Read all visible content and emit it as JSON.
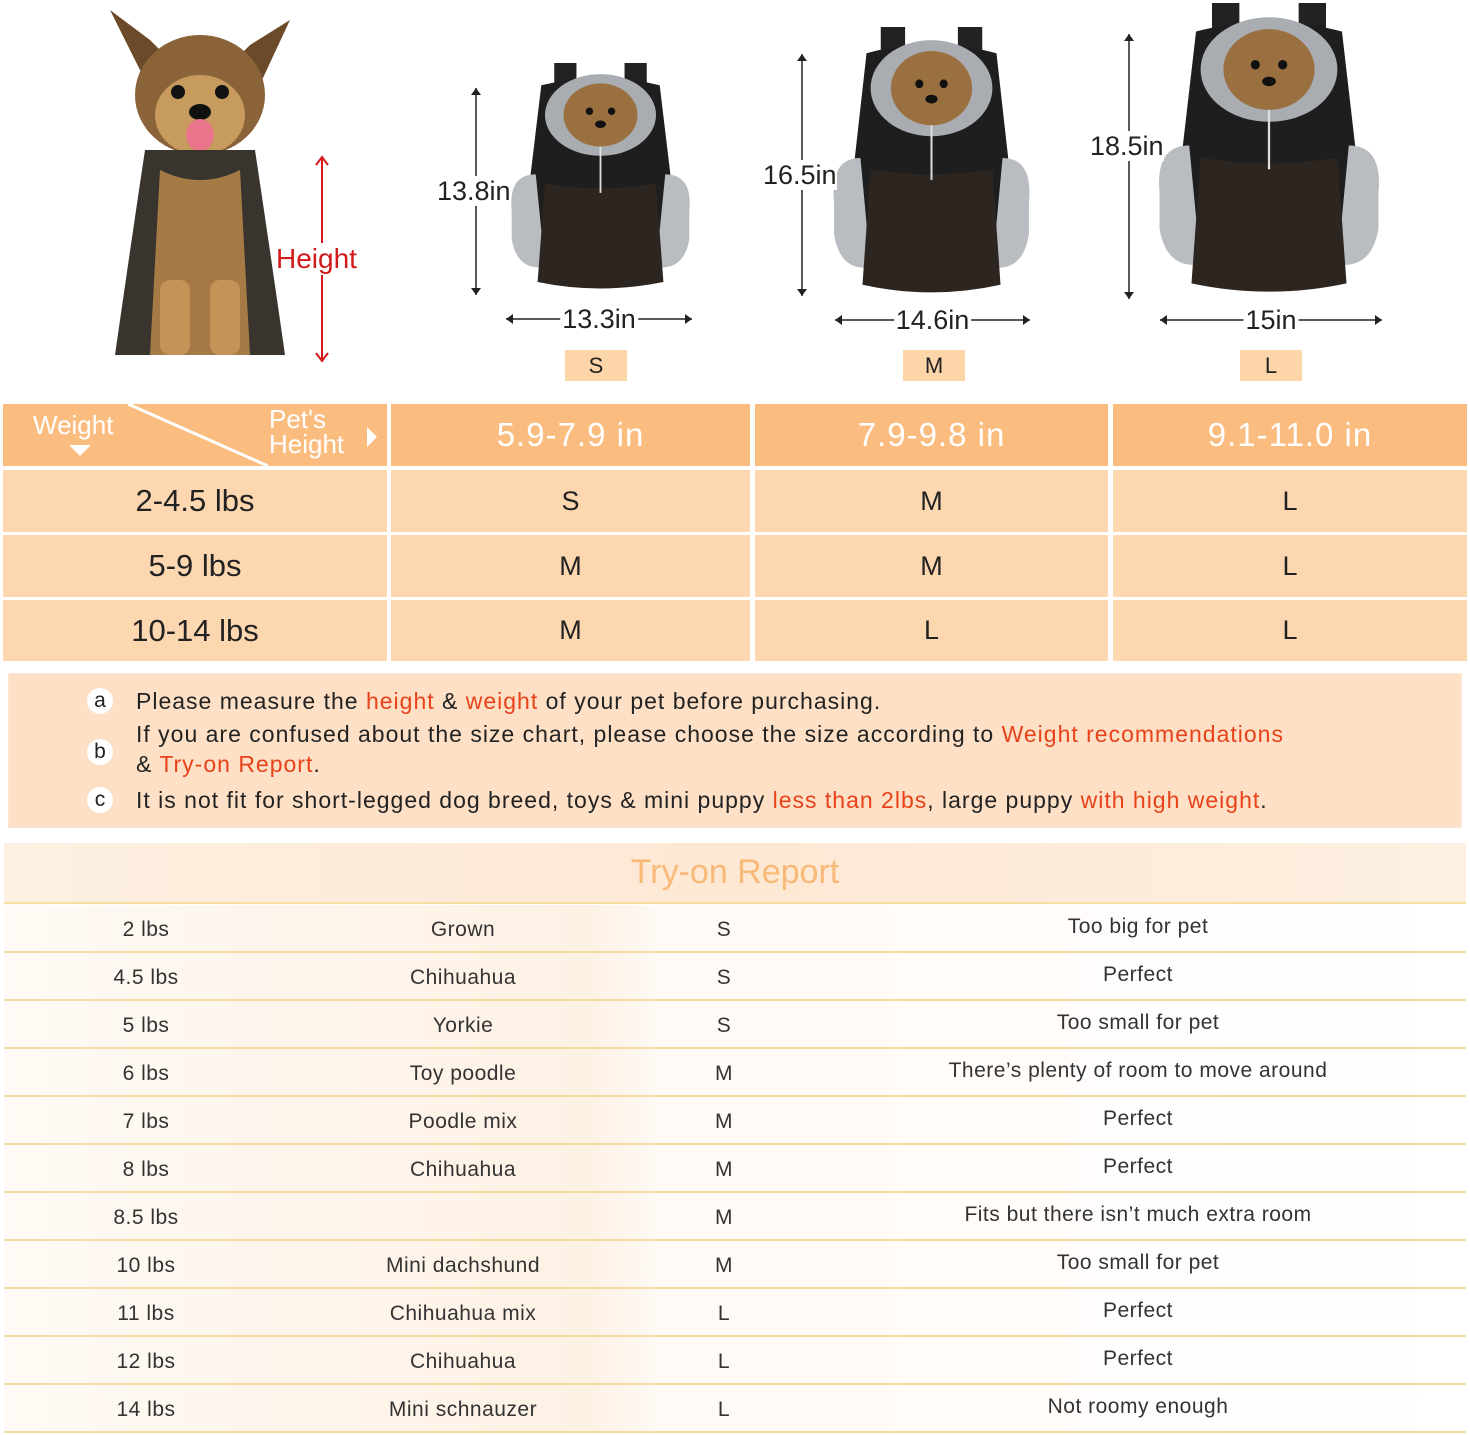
{
  "dog": {
    "height_label": "Height"
  },
  "sizes": [
    {
      "size": "S",
      "height": "13.8in",
      "width": "13.3in"
    },
    {
      "size": "M",
      "height": "16.5in",
      "width": "14.6in"
    },
    {
      "size": "L",
      "height": "18.5in",
      "width": "15in"
    }
  ],
  "size_table": {
    "corner": {
      "weight": "Weight",
      "height_line1": "Pet's",
      "height_line2": "Height"
    },
    "columns": [
      "5.9-7.9 in",
      "7.9-9.8 in",
      "9.1-11.0 in"
    ],
    "rows": [
      {
        "weight": "2-4.5 lbs",
        "values": [
          "S",
          "M",
          "L"
        ]
      },
      {
        "weight": "5-9 lbs",
        "values": [
          "M",
          "M",
          "L"
        ]
      },
      {
        "weight": "10-14 lbs",
        "values": [
          "M",
          "L",
          "L"
        ]
      }
    ]
  },
  "notes": [
    {
      "marker": "a",
      "parts": [
        "Please measure the ",
        "height",
        " & ",
        "weight",
        " of your pet before purchasing."
      ]
    },
    {
      "marker": "b",
      "parts": [
        "If you are confused about the size chart, please choose the size according to ",
        "Weight recommendations",
        "& ",
        "Try-on Report",
        "."
      ]
    },
    {
      "marker": "c",
      "parts": [
        "It is not fit for short-legged dog breed, toys & mini puppy ",
        "less than 2lbs",
        ", large puppy ",
        "with high weight",
        "."
      ]
    }
  ],
  "colors": {
    "header": "#fbbd7f",
    "body": "#fdd7b0",
    "highlight": "#e8421b",
    "height_arrow": "#d21a1a",
    "title": "#f9b978"
  },
  "try_on": {
    "title": "Try-on Report",
    "rows": [
      [
        "2 lbs",
        "Grown",
        "S",
        "Too big for pet"
      ],
      [
        "4.5 lbs",
        "Chihuahua",
        "S",
        "Perfect"
      ],
      [
        "5 lbs",
        "Yorkie",
        "S",
        "Too small for pet"
      ],
      [
        "6 lbs",
        "Toy poodle",
        "M",
        "There’s plenty of room to move around"
      ],
      [
        "7 lbs",
        "Poodle mix",
        "M",
        "Perfect"
      ],
      [
        "8 lbs",
        "Chihuahua",
        "M",
        "Perfect"
      ],
      [
        "8.5 lbs",
        "",
        "M",
        "Fits but there isn’t much extra room"
      ],
      [
        "10 lbs",
        "Mini dachshund",
        "M",
        "Too small for pet"
      ],
      [
        "11 lbs",
        "Chihuahua mix",
        "L",
        "Perfect"
      ],
      [
        "12 lbs",
        "Chihuahua",
        "L",
        "Perfect"
      ],
      [
        "14 lbs",
        "Mini schnauzer",
        "L",
        "Not roomy enough"
      ]
    ]
  }
}
